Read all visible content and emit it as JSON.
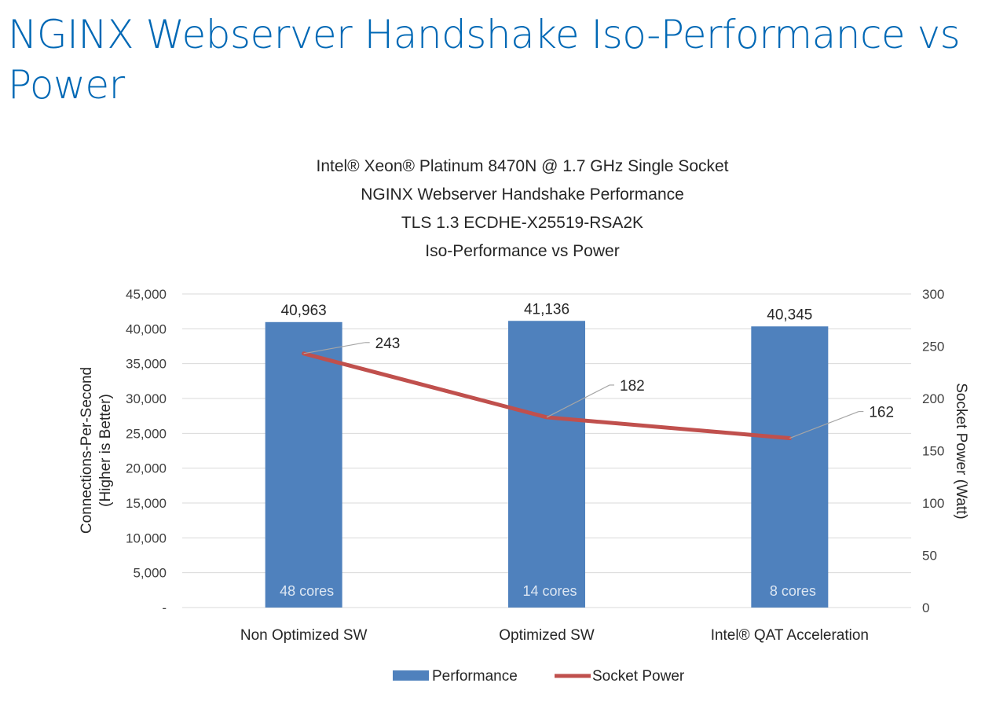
{
  "slide_title": "NGINX Webserver Handshake Iso-Performance vs Power",
  "chart_data": {
    "type": "bar",
    "title_lines": [
      "Intel® Xeon® Platinum 8470N @ 1.7 GHz Single Socket",
      "NGINX Webserver Handshake Performance",
      "TLS 1.3 ECDHE-X25519-RSA2K",
      "Iso-Performance vs Power"
    ],
    "categories": [
      "Non Optimized SW",
      "Optimized SW",
      "Intel® QAT Acceleration"
    ],
    "series": [
      {
        "name": "Performance",
        "kind": "bar",
        "axis": "left",
        "values": [
          40963,
          41136,
          40345
        ],
        "data_labels": [
          "40,963",
          "41,136",
          "40,345"
        ],
        "inner_labels": [
          "48 cores",
          "14 cores",
          "8 cores"
        ],
        "color": "#4f81bd"
      },
      {
        "name": "Socket Power",
        "kind": "line",
        "axis": "right",
        "values": [
          243,
          182,
          162
        ],
        "data_labels": [
          "243",
          "182",
          "162"
        ],
        "color": "#c0504d"
      }
    ],
    "ylabel": "Connections-Per-Second\n(Higher is Better)",
    "y2label": "Socket Power (Watt)",
    "ylim": [
      0,
      45000
    ],
    "y2lim": [
      0,
      300
    ],
    "yticks": [
      "-",
      "5,000",
      "10,000",
      "15,000",
      "20,000",
      "25,000",
      "30,000",
      "35,000",
      "40,000",
      "45,000"
    ],
    "y2ticks": [
      "0",
      "50",
      "100",
      "150",
      "200",
      "250",
      "300"
    ],
    "grid": true,
    "legend_position": "bottom"
  }
}
